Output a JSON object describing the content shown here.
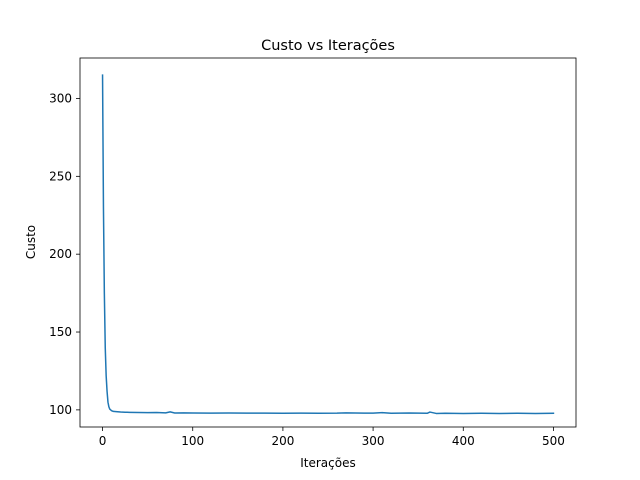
{
  "chart_data": {
    "type": "line",
    "title": "Custo vs Iterações",
    "xlabel": "Iterações",
    "ylabel": "Custo",
    "xlim": [
      -25,
      525
    ],
    "ylim": [
      89,
      326
    ],
    "xticks": [
      0,
      100,
      200,
      300,
      400,
      500
    ],
    "yticks": [
      100,
      150,
      200,
      250,
      300
    ],
    "grid": false,
    "series_color": "#1f77b4",
    "series": [
      {
        "x": [
          0,
          1,
          2,
          3,
          4,
          5,
          6,
          7,
          8,
          10,
          12,
          15,
          20,
          25,
          30,
          40,
          50,
          60,
          70,
          75,
          80,
          90,
          100,
          120,
          140,
          160,
          180,
          200,
          220,
          240,
          260,
          270,
          280,
          290,
          300,
          310,
          320,
          330,
          340,
          350,
          360,
          363,
          370,
          380,
          400,
          420,
          440,
          460,
          480,
          500
        ],
        "y": [
          315,
          230,
          175,
          140,
          122,
          112,
          105,
          102,
          100.5,
          99.5,
          99.0,
          98.9,
          98.6,
          98.5,
          98.4,
          98.3,
          98.2,
          98.3,
          98.1,
          98.7,
          98.0,
          98.1,
          98.0,
          97.9,
          98.0,
          97.9,
          97.9,
          97.8,
          97.9,
          97.8,
          97.9,
          98.1,
          98.0,
          97.9,
          97.9,
          98.2,
          97.8,
          97.9,
          98.0,
          97.9,
          97.8,
          98.6,
          97.7,
          97.8,
          97.7,
          97.8,
          97.7,
          97.8,
          97.7,
          97.8
        ]
      }
    ]
  }
}
